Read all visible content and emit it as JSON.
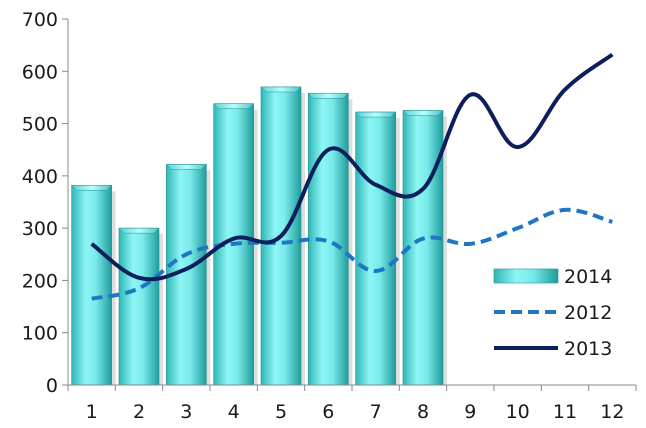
{
  "chart_data": {
    "type": "bar",
    "categories": [
      "1",
      "2",
      "3",
      "4",
      "5",
      "6",
      "7",
      "8",
      "9",
      "10",
      "11",
      "12"
    ],
    "ylim": [
      0,
      700
    ],
    "yticks": [
      "0",
      "100",
      "200",
      "300",
      "400",
      "500",
      "600",
      "700"
    ],
    "grid": false,
    "legend_position": "bottom-right",
    "series": [
      {
        "name": "2014",
        "type": "bar",
        "color": "#66e0e0",
        "values": [
          382,
          300,
          422,
          538,
          570,
          558,
          522,
          525,
          null,
          null,
          null,
          null
        ]
      },
      {
        "name": "2012",
        "type": "line",
        "style": "dashed",
        "color": "#1f77c4",
        "values": [
          165,
          185,
          250,
          270,
          272,
          275,
          218,
          280,
          270,
          300,
          335,
          312
        ]
      },
      {
        "name": "2013",
        "type": "line",
        "style": "solid",
        "color": "#0b1f5c",
        "values": [
          270,
          205,
          222,
          280,
          285,
          450,
          383,
          375,
          555,
          455,
          565,
          632
        ]
      }
    ]
  }
}
